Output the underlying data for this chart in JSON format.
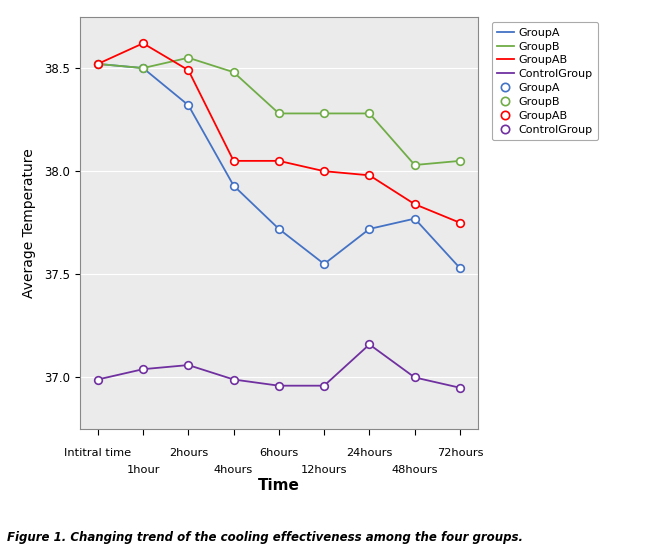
{
  "x_labels_top": [
    "Intitral time",
    "2hours",
    "6hours",
    "24hours",
    "72hours"
  ],
  "x_labels_bottom": [
    "1hour",
    "4hours",
    "12hours",
    "48hours"
  ],
  "x_positions": [
    0,
    1,
    2,
    3,
    4,
    5,
    6,
    7,
    8
  ],
  "x_tick_labels": [
    "Intitral time",
    "1hour",
    "2hours",
    "4hours",
    "6hours",
    "12hours",
    "24hours",
    "48hours",
    "72hours"
  ],
  "groupA": [
    38.52,
    38.5,
    38.32,
    37.93,
    37.72,
    37.55,
    37.72,
    37.77,
    37.53
  ],
  "groupB": [
    38.52,
    38.5,
    38.55,
    38.48,
    38.28,
    38.28,
    38.28,
    38.03,
    38.05
  ],
  "groupAB": [
    38.52,
    38.62,
    38.49,
    38.05,
    38.05,
    38.0,
    37.98,
    37.84,
    37.75
  ],
  "controlGroup": [
    36.99,
    37.04,
    37.06,
    36.99,
    36.96,
    36.96,
    37.16,
    37.0,
    36.95
  ],
  "colors": {
    "groupA": "#4472C4",
    "groupB": "#70AD47",
    "groupAB": "#FF0000",
    "controlGroup": "#7030A0"
  },
  "ylabel": "Average Temperature",
  "xlabel": "Time",
  "ylim": [
    36.75,
    38.75
  ],
  "yticks": [
    37.0,
    37.5,
    38.0,
    38.5
  ],
  "caption": "Figure 1. Changing trend of the cooling effectiveness among the four groups.",
  "bg_color": "#EBEBEB",
  "legend_labels": [
    "GroupA",
    "GroupB",
    "GroupAB",
    "ControlGroup"
  ]
}
